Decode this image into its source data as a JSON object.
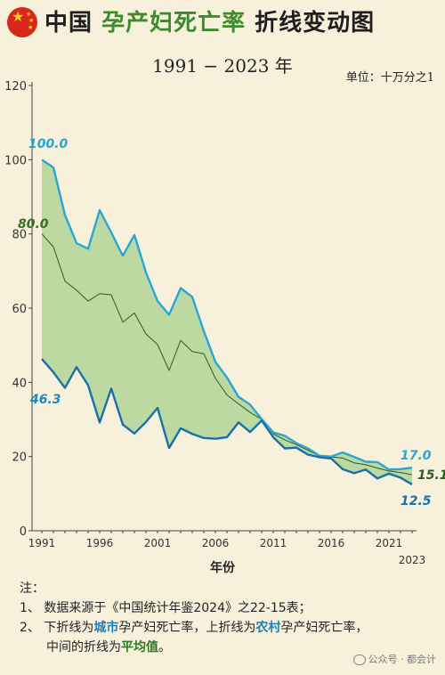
{
  "header": {
    "title_prefix": "中国",
    "title_highlight": "孕产妇死亡率",
    "title_suffix": "折线变动图",
    "subtitle": "1991 − 2023 年",
    "unit": "单位：十万分之1"
  },
  "colors": {
    "background": "#f7f1dc",
    "rural": "#29a6d4",
    "urban": "#1a6fa8",
    "average": "#2f5a1f",
    "band_fill": "#bcd9a2",
    "title_green": "#3f8a2c"
  },
  "chart_data": {
    "type": "line",
    "x": [
      1991,
      1992,
      1993,
      1994,
      1995,
      1996,
      1997,
      1998,
      1999,
      2000,
      2001,
      2002,
      2003,
      2004,
      2005,
      2006,
      2007,
      2008,
      2009,
      2010,
      2011,
      2012,
      2013,
      2014,
      2015,
      2016,
      2017,
      2018,
      2019,
      2020,
      2021,
      2022,
      2023
    ],
    "series": [
      {
        "name": "农村",
        "color": "#29a6d4",
        "values": [
          100.0,
          97.9,
          85.1,
          77.5,
          76.0,
          86.4,
          80.4,
          74.1,
          79.7,
          69.6,
          61.9,
          58.2,
          65.4,
          63.0,
          53.8,
          45.5,
          41.3,
          36.1,
          34.0,
          30.1,
          26.5,
          25.6,
          23.6,
          22.2,
          20.2,
          20.0,
          21.1,
          19.9,
          18.6,
          18.5,
          16.5,
          16.6,
          17.0
        ]
      },
      {
        "name": "平均值",
        "color": "#2f5a1f",
        "values": [
          80.0,
          76.5,
          67.3,
          64.8,
          61.9,
          63.9,
          63.6,
          56.2,
          58.7,
          53.0,
          50.2,
          43.2,
          51.3,
          48.3,
          47.7,
          41.1,
          36.6,
          34.2,
          31.9,
          30.0,
          26.1,
          24.5,
          23.2,
          21.7,
          20.1,
          19.9,
          19.6,
          18.3,
          17.8,
          16.9,
          16.1,
          15.7,
          15.1
        ]
      },
      {
        "name": "城市",
        "color": "#1a6fa8",
        "values": [
          46.3,
          42.7,
          38.5,
          44.1,
          39.2,
          29.2,
          38.3,
          28.6,
          26.2,
          29.3,
          33.1,
          22.3,
          27.6,
          26.1,
          25.0,
          24.8,
          25.2,
          29.2,
          26.6,
          29.7,
          25.2,
          22.2,
          22.4,
          20.5,
          19.8,
          19.5,
          16.6,
          15.5,
          16.5,
          14.1,
          15.4,
          14.3,
          12.5
        ]
      }
    ],
    "labels": {
      "rural_start": "100.0",
      "avg_start": "80.0",
      "urban_start": "46.3",
      "rural_end": "17.0",
      "avg_end": "15.1",
      "urban_end": "12.5"
    },
    "xticks": [
      "1991",
      "1996",
      "2001",
      "2006",
      "2011",
      "2016",
      "2021",
      "2023"
    ],
    "yticks": [
      "0",
      "20",
      "40",
      "60",
      "80",
      "100",
      "120"
    ],
    "ylim": [
      0,
      120
    ],
    "xlabel": "年份",
    "grid": false
  },
  "notes": {
    "heading": "注：",
    "n1": "1、 数据来源于《中国统计年鉴2024》之22-15表；",
    "n2_a": "2、 下折线为",
    "n2_b": "城市",
    "n2_c": "孕产妇死亡率，上折线为",
    "n2_d": "农村",
    "n2_e": "孕产妇死亡率，",
    "n3_a": "中间的折线为",
    "n3_b": "平均值",
    "n3_c": "。"
  },
  "watermark": "公众号 · 都会计"
}
